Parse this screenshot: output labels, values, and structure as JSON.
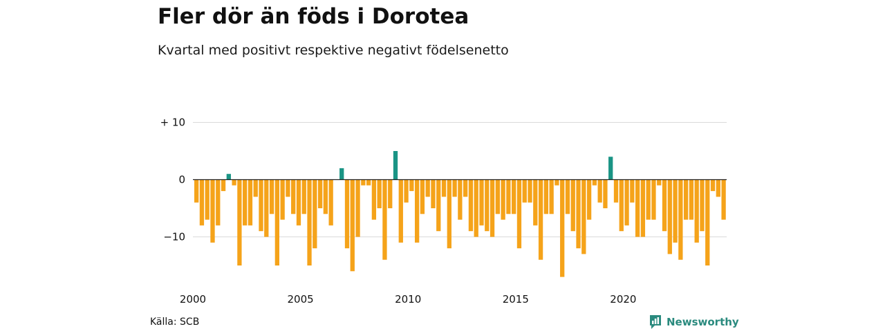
{
  "title": "Fler dör än föds i Dorotea",
  "subtitle": "Kvartal med positivt respektive negativt födelsenetto",
  "source": "Källa: SCB",
  "brand": {
    "name": "Newsworthy",
    "icon": "newsworthy-logo-icon"
  },
  "colors": {
    "positive": "#1a9485",
    "negative": "#f5a31a",
    "gridline": "#d9d9d9",
    "zeroline": "#222222"
  },
  "chart_data": {
    "type": "bar",
    "x_start": "2000 Q1",
    "x_end": "2024 Q3",
    "x_tick_labels": [
      "2000",
      "2005",
      "2010",
      "2015",
      "2020"
    ],
    "y_tick_labels": [
      "+ 10",
      "0",
      "−10"
    ],
    "y_ticks": [
      10,
      0,
      -10
    ],
    "ylim": [
      -17,
      10
    ],
    "grid": true,
    "values": [
      -4,
      -8,
      -7,
      -11,
      -8,
      -2,
      1,
      -1,
      -15,
      -8,
      -8,
      -3,
      -9,
      -10,
      -6,
      -15,
      -7,
      -3,
      -6,
      -8,
      -6,
      -15,
      -12,
      -5,
      -6,
      -8,
      0,
      2,
      -12,
      -16,
      -10,
      -1,
      -1,
      -7,
      -5,
      -14,
      -5,
      5,
      -11,
      -4,
      -2,
      -11,
      -6,
      -3,
      -5,
      -9,
      -3,
      -12,
      -3,
      -7,
      -3,
      -9,
      -10,
      -8,
      -9,
      -10,
      -6,
      -7,
      -6,
      -6,
      -12,
      -4,
      -4,
      -8,
      -14,
      -6,
      -6,
      -1,
      -17,
      -6,
      -9,
      -12,
      -13,
      -7,
      -1,
      -4,
      -5,
      4,
      -4,
      -9,
      -8,
      -4,
      -10,
      -10,
      -7,
      -7,
      -1,
      -9,
      -13,
      -11,
      -14,
      -7,
      -7,
      -11,
      -9,
      -15,
      -2,
      -3,
      -7
    ]
  }
}
